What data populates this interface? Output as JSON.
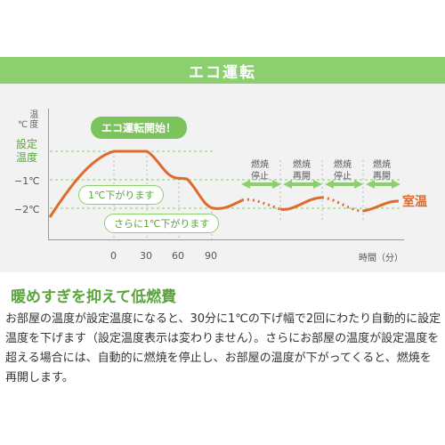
{
  "header": {
    "title": "エコ運転"
  },
  "chart": {
    "y_unit_symbol": "℃",
    "y_unit_label": "温度",
    "y_set_temp_label_1": "設定",
    "y_set_temp_label_2": "温度",
    "y_tick_1": "−1℃",
    "y_tick_2": "−2℃",
    "x_ticks": [
      "0",
      "30",
      "60",
      "90"
    ],
    "x_unit": "時間（分）",
    "bubble_start": "エコ運転開始！",
    "pill_1": "1℃下がります",
    "pill_2": "さらに1℃下がります",
    "phases": [
      {
        "l1": "燃焼",
        "l2": "停止"
      },
      {
        "l1": "燃焼",
        "l2": "再開"
      },
      {
        "l1": "燃焼",
        "l2": "停止"
      },
      {
        "l1": "燃焼",
        "l2": "再開"
      }
    ],
    "room_temp_label": "室温",
    "colors": {
      "accent_green": "#8ccf6f",
      "curve_orange": "#e06a2c"
    }
  },
  "section": {
    "heading": "暖めすぎを抑えて低燃費",
    "paragraph": "お部屋の温度が設定温度になると、30分に1℃の下げ幅で2回にわたり自動的に設定温度を下げます（設定温度表示は変わりません）。さらにお部屋の温度が設定温度を超える場合には、自動的に燃焼を停止し、お部屋の温度が下がってくると、燃焼を再開します。"
  }
}
